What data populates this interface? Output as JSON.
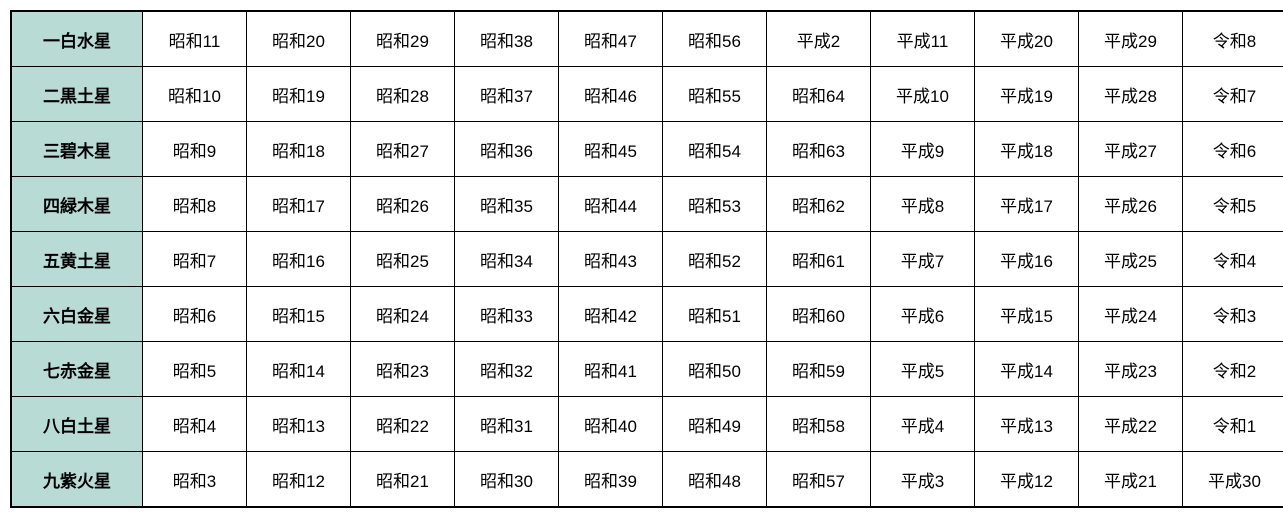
{
  "table": {
    "type": "table",
    "header_bg_color": "#b8dcd5",
    "data_bg_color": "#ffffff",
    "border_color": "#000000",
    "font_size": 17,
    "header_font_weight": "bold",
    "row_headers": [
      "一白水星",
      "二黒土星",
      "三碧木星",
      "四緑木星",
      "五黄土星",
      "六白金星",
      "七赤金星",
      "八白土星",
      "九紫火星"
    ],
    "rows": [
      [
        "昭和11",
        "昭和20",
        "昭和29",
        "昭和38",
        "昭和47",
        "昭和56",
        "平成2",
        "平成11",
        "平成20",
        "平成29",
        "令和8"
      ],
      [
        "昭和10",
        "昭和19",
        "昭和28",
        "昭和37",
        "昭和46",
        "昭和55",
        "昭和64",
        "平成10",
        "平成19",
        "平成28",
        "令和7"
      ],
      [
        "昭和9",
        "昭和18",
        "昭和27",
        "昭和36",
        "昭和45",
        "昭和54",
        "昭和63",
        "平成9",
        "平成18",
        "平成27",
        "令和6"
      ],
      [
        "昭和8",
        "昭和17",
        "昭和26",
        "昭和35",
        "昭和44",
        "昭和53",
        "昭和62",
        "平成8",
        "平成17",
        "平成26",
        "令和5"
      ],
      [
        "昭和7",
        "昭和16",
        "昭和25",
        "昭和34",
        "昭和43",
        "昭和52",
        "昭和61",
        "平成7",
        "平成16",
        "平成25",
        "令和4"
      ],
      [
        "昭和6",
        "昭和15",
        "昭和24",
        "昭和33",
        "昭和42",
        "昭和51",
        "昭和60",
        "平成6",
        "平成15",
        "平成24",
        "令和3"
      ],
      [
        "昭和5",
        "昭和14",
        "昭和23",
        "昭和32",
        "昭和41",
        "昭和50",
        "昭和59",
        "平成5",
        "平成14",
        "平成23",
        "令和2"
      ],
      [
        "昭和4",
        "昭和13",
        "昭和22",
        "昭和31",
        "昭和40",
        "昭和49",
        "昭和58",
        "平成4",
        "平成13",
        "平成22",
        "令和1"
      ],
      [
        "昭和3",
        "昭和12",
        "昭和21",
        "昭和30",
        "昭和39",
        "昭和48",
        "昭和57",
        "平成3",
        "平成12",
        "平成21",
        "平成30"
      ]
    ]
  }
}
